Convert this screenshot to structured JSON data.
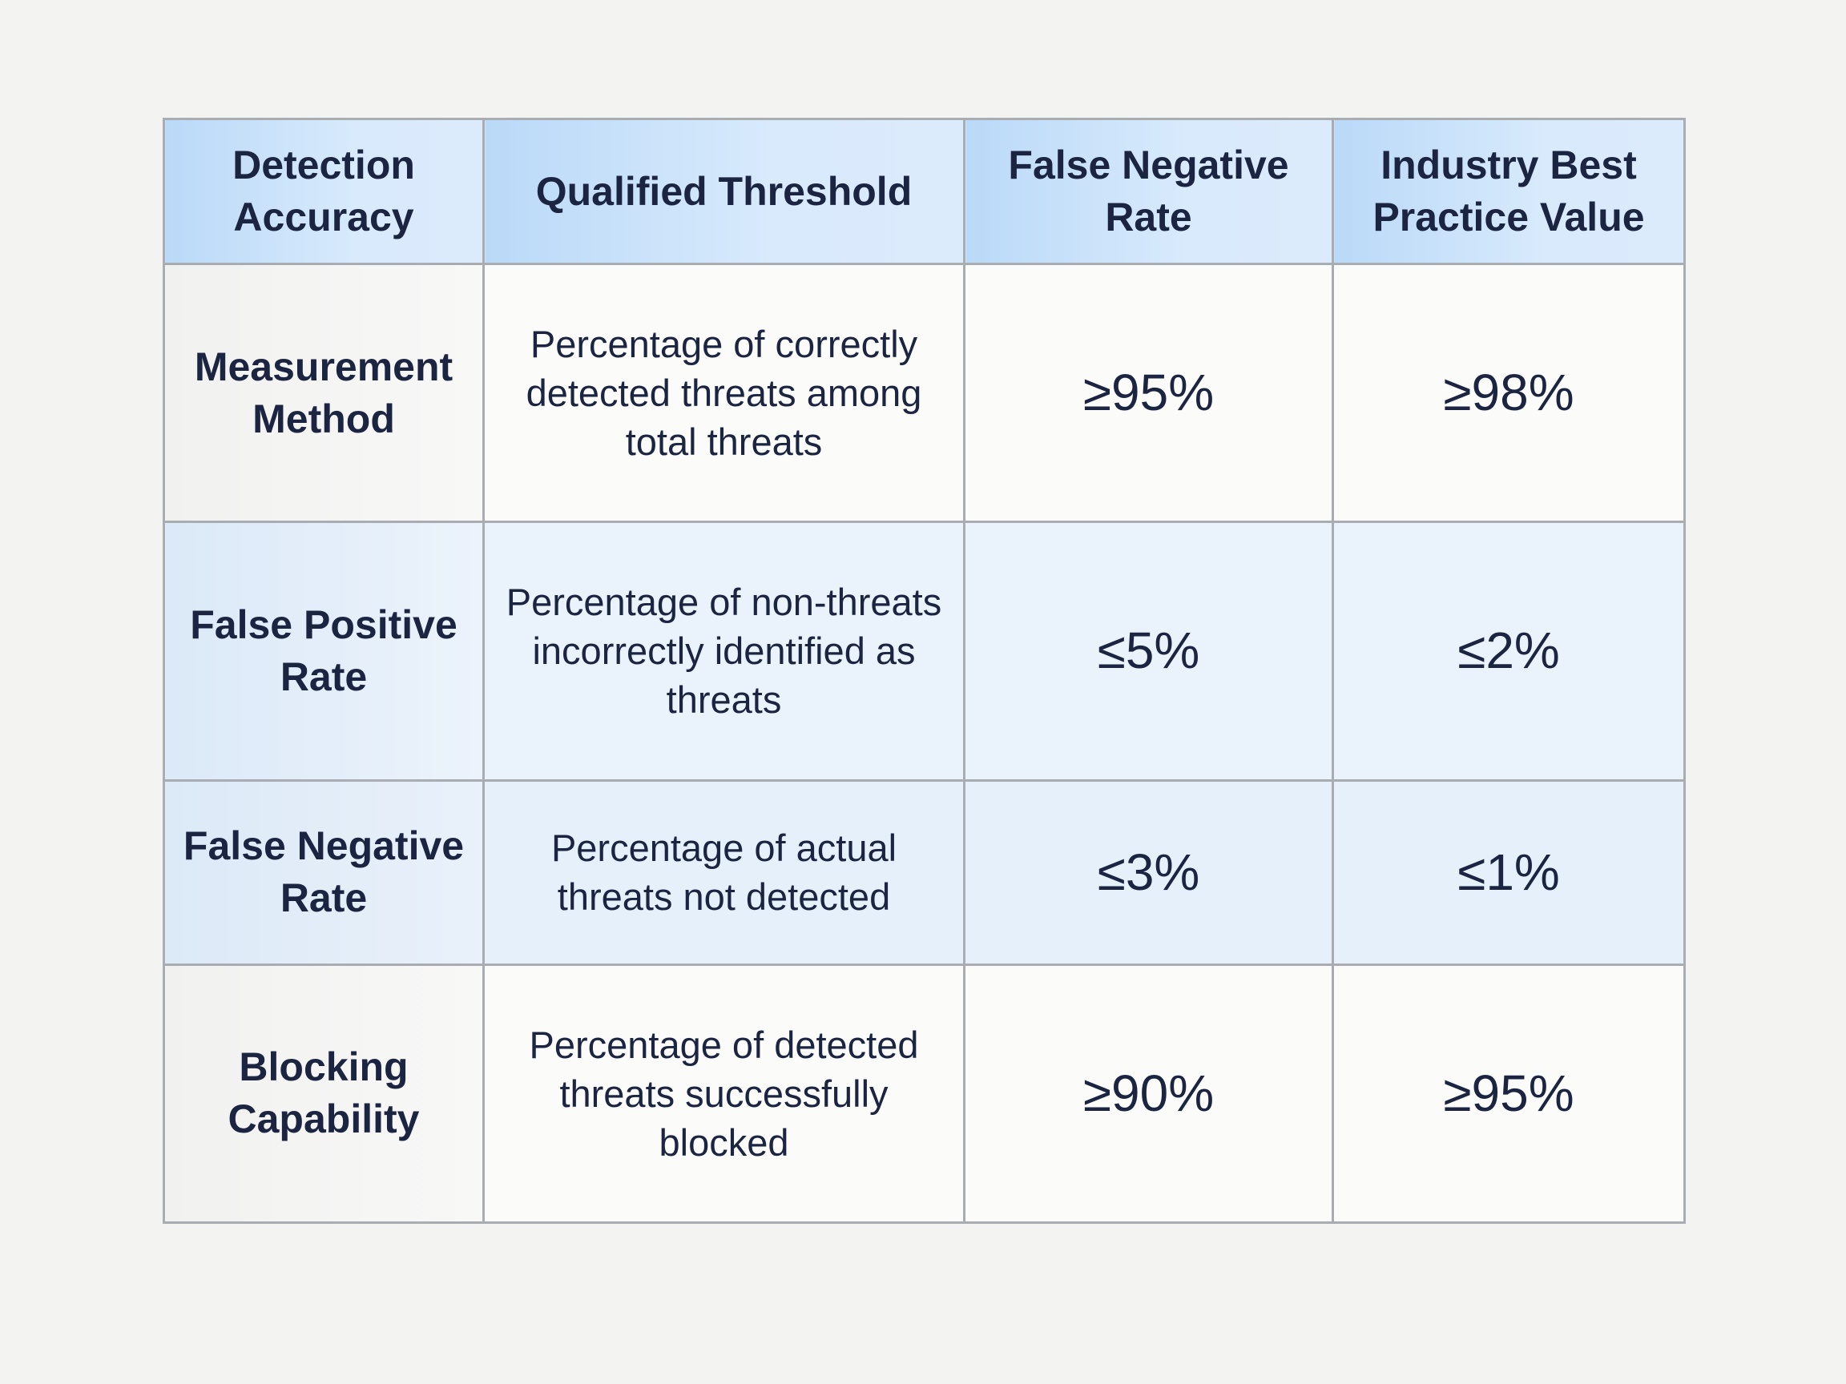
{
  "table": {
    "header": [
      "Detection Accuracy",
      "Qualified Threshold",
      "False Negative Rate",
      "Industry Best Practice Value"
    ],
    "rows": [
      [
        "Measurement Method",
        "Percentage of correctly detected threats among total threats",
        "≥95%",
        "≥98%"
      ],
      [
        "False Positive Rate",
        "Percentage of non-threats incorrectly identified as threats",
        "≤5%",
        "≤2%"
      ],
      [
        "False Negative Rate",
        "Percentage of actual threats not detected",
        "≤3%",
        "≤1%"
      ],
      [
        "Blocking Capability",
        "Percentage of detected threats successfully blocked",
        "≥90%",
        "≥95%"
      ]
    ]
  }
}
